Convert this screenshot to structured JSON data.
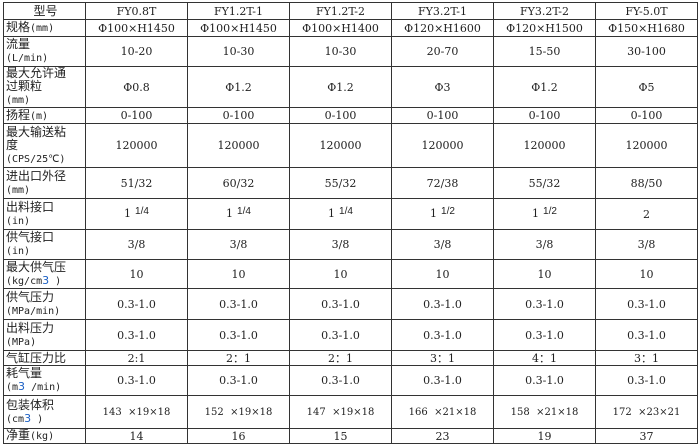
{
  "header": {
    "label": "型号",
    "models": [
      "FY0.8T",
      "FY1.2T-1",
      "FY1.2T-2",
      "FY3.2T-1",
      "FY3.2T-2",
      "FY-5.0T"
    ]
  },
  "rows": [
    {
      "label": "规格",
      "unit": "(mm)",
      "values": [
        "Φ100×H1450",
        "Φ100×H1450",
        "Φ100×H1400",
        "Φ120×H1600",
        "Φ120×H1500",
        "Φ150×H1680"
      ]
    },
    {
      "label": "流量",
      "unit": "(L/min)",
      "values": [
        "10-20",
        "10-30",
        "10-30",
        "20-70",
        "15-50",
        "30-100"
      ]
    },
    {
      "label": "最大允许通过颗粒",
      "unit": "(mm)",
      "values": [
        "Φ0.8",
        "Φ1.2",
        "Φ1.2",
        "Φ3",
        "Φ1.2",
        "Φ5"
      ]
    },
    {
      "label": "扬程",
      "unit": "(m)",
      "values": [
        "0-100",
        "0-100",
        "0-100",
        "0-100",
        "0-100",
        "0-100"
      ]
    },
    {
      "label": "最大输送粘度",
      "unit": "(CPS/25℃)",
      "values": [
        "120000",
        "120000",
        "120000",
        "120000",
        "120000",
        "120000"
      ]
    },
    {
      "label": "进出口外径",
      "unit": "(mm)",
      "values": [
        "51/32",
        "60/32",
        "55/32",
        "72/38",
        "55/32",
        "88/50"
      ]
    },
    {
      "label": "出料接口",
      "unit": "(in)",
      "values": [
        [
          "1",
          "1/4"
        ],
        [
          "1",
          "1/4"
        ],
        [
          "1",
          "1/4"
        ],
        [
          "1",
          "1/2"
        ],
        [
          "1",
          "1/2"
        ],
        [
          "2",
          ""
        ]
      ]
    },
    {
      "label": "供气接口",
      "unit": "(in)",
      "values": [
        "3/8",
        "3/8",
        "3/8",
        "3/8",
        "3/8",
        "3/8"
      ]
    },
    {
      "label": "最大供气压",
      "unit": "(kg/cm",
      "sup": "3",
      "unit_end": " )",
      "values": [
        "10",
        "10",
        "10",
        "10",
        "10",
        "10"
      ]
    },
    {
      "label": "供气压力",
      "unit": "(MPa/min)",
      "values": [
        "0.3-1.0",
        "0.3-1.0",
        "0.3-1.0",
        "0.3-1.0",
        "0.3-1.0",
        "0.3-1.0"
      ]
    },
    {
      "label": "出料压力",
      "unit": "(MPa)",
      "values": [
        "0.3-1.0",
        "0.3-1.0",
        "0.3-1.0",
        "0.3-1.0",
        "0.3-1.0",
        "0.3-1.0"
      ]
    },
    {
      "label": "气缸压力比",
      "unit": "",
      "values": [
        "2:1",
        "2：1",
        "2：1",
        "3：1",
        "4：1",
        "3：1"
      ]
    },
    {
      "label": "耗气量",
      "unit": "(m",
      "sup": "3",
      "unit_end": " /min)",
      "values": [
        "0.3-1.0",
        "0.3-1.0",
        "0.3-1.0",
        "0.3-1.0",
        "0.3-1.0",
        "0.3-1.0"
      ]
    },
    {
      "label": "包装体积",
      "unit": "(cm",
      "sup": "3",
      "unit_end": " )",
      "values": [
        "143  ×19×18",
        "152  ×19×18",
        "147  ×19×18",
        "166  ×21×18",
        "158  ×21×18",
        "172  ×23×21"
      ]
    },
    {
      "label": "净重",
      "unit": "(kg)",
      "values": [
        "14",
        "16",
        "15",
        "23",
        "19",
        "37"
      ]
    }
  ],
  "colors": {
    "border": "#333333",
    "superscript": "#1a5fc4",
    "text": "#222222"
  }
}
